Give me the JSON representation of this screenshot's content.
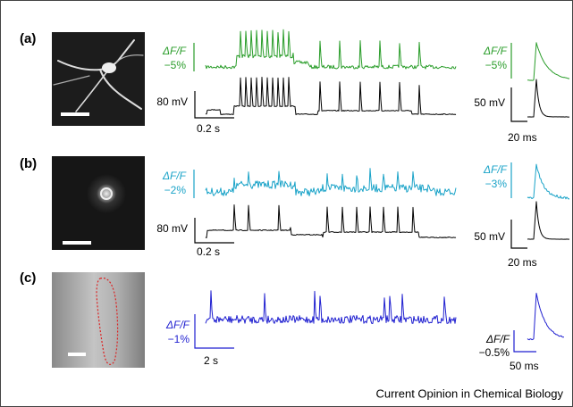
{
  "panels": [
    {
      "label": "(a)",
      "trace_scale": {
        "fluorescence": "ΔF/F",
        "fluorescence_value": "−5%",
        "voltage": "80 mV",
        "time": "0.2 s"
      },
      "spike_scale": {
        "fluorescence": "ΔF/F",
        "fluorescence_value": "−5%",
        "voltage": "50 mV",
        "time": "20 ms"
      }
    },
    {
      "label": "(b)",
      "trace_scale": {
        "fluorescence": "ΔF/F",
        "fluorescence_value": "−2%",
        "voltage": "80 mV",
        "time": "0.2 s"
      },
      "spike_scale": {
        "fluorescence": "ΔF/F",
        "fluorescence_value": "−3%",
        "voltage": "50 mV",
        "time": "20 ms"
      }
    },
    {
      "label": "(c)",
      "trace_scale": {
        "fluorescence": "ΔF/F",
        "fluorescence_value": "−1%",
        "time": "2 s"
      },
      "spike_scale": {
        "fluorescence": "ΔF/F",
        "fluorescence_value": "−0.5%",
        "time": "50 ms"
      }
    }
  ],
  "footer": "Current Opinion in Chemical Biology"
}
